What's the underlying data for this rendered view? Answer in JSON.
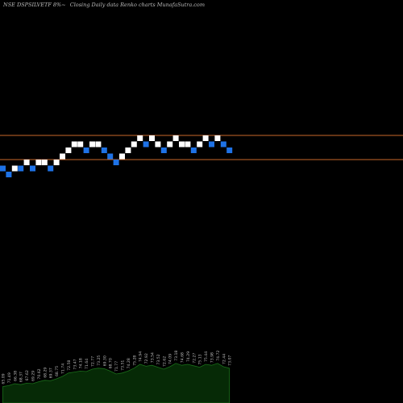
{
  "header": {
    "symbol": "NSE DSPSILVETF 8%~",
    "description": "Closing Daily data  Renko  charts MunafaSutra.com"
  },
  "chart_data": {
    "type": "renko",
    "colors": {
      "up": "#ffffff",
      "down": "#1e72e6",
      "hline": "#c8682a",
      "volume_fill": "#062a06",
      "volume_line": "#1a6e1a",
      "label": "#bbbbbb"
    },
    "horizontal_lines": [
      75.0,
      72.6
    ],
    "bricks": [
      {
        "dir": "down",
        "level": 72.0
      },
      {
        "dir": "down",
        "level": 71.4
      },
      {
        "dir": "up",
        "level": 72.0
      },
      {
        "dir": "down",
        "level": 72.0
      },
      {
        "dir": "up",
        "level": 72.6
      },
      {
        "dir": "down",
        "level": 72.0
      },
      {
        "dir": "up",
        "level": 72.6
      },
      {
        "dir": "up",
        "level": 72.6
      },
      {
        "dir": "down",
        "level": 72.0
      },
      {
        "dir": "up",
        "level": 72.6
      },
      {
        "dir": "up",
        "level": 73.2
      },
      {
        "dir": "up",
        "level": 73.8
      },
      {
        "dir": "up",
        "level": 74.4
      },
      {
        "dir": "up",
        "level": 74.4
      },
      {
        "dir": "down",
        "level": 73.8
      },
      {
        "dir": "up",
        "level": 74.4
      },
      {
        "dir": "up",
        "level": 74.4
      },
      {
        "dir": "down",
        "level": 73.8
      },
      {
        "dir": "down",
        "level": 73.2
      },
      {
        "dir": "down",
        "level": 72.6
      },
      {
        "dir": "up",
        "level": 73.2
      },
      {
        "dir": "up",
        "level": 73.8
      },
      {
        "dir": "up",
        "level": 74.4
      },
      {
        "dir": "up",
        "level": 75.0
      },
      {
        "dir": "down",
        "level": 74.4
      },
      {
        "dir": "up",
        "level": 75.0
      },
      {
        "dir": "up",
        "level": 74.4
      },
      {
        "dir": "down",
        "level": 73.8
      },
      {
        "dir": "up",
        "level": 74.4
      },
      {
        "dir": "up",
        "level": 75.0
      },
      {
        "dir": "up",
        "level": 74.4
      },
      {
        "dir": "up",
        "level": 74.4
      },
      {
        "dir": "down",
        "level": 73.8
      },
      {
        "dir": "up",
        "level": 74.4
      },
      {
        "dir": "up",
        "level": 75.0
      },
      {
        "dir": "down",
        "level": 74.4
      },
      {
        "dir": "up",
        "level": 75.0
      },
      {
        "dir": "down",
        "level": 74.4
      },
      {
        "dir": "down",
        "level": 73.8
      }
    ],
    "volume": [
      0.34,
      0.36,
      0.4,
      0.38,
      0.41,
      0.4,
      0.44,
      0.47,
      0.46,
      0.5,
      0.55,
      0.62,
      0.64,
      0.66,
      0.65,
      0.7,
      0.72,
      0.71,
      0.66,
      0.6,
      0.62,
      0.66,
      0.72,
      0.8,
      0.76,
      0.78,
      0.74,
      0.7,
      0.75,
      0.82,
      0.78,
      0.8,
      0.77,
      0.74,
      0.8,
      0.78,
      0.82,
      0.75,
      0.72
    ],
    "labels": [
      "65.09",
      "71.49",
      "66.38",
      "68.37",
      "67.62",
      "69.29",
      "70.62",
      "68.29",
      "69.37",
      "68.75",
      "71.74",
      "72.58",
      "73.47",
      "74.18",
      "71.64",
      "72.77",
      "73.25",
      "69.30",
      "68.70",
      "71.77",
      "73.51",
      "74.28",
      "75.28",
      "74.94",
      "72.92",
      "73.54",
      "73.52",
      "72.62",
      "74.09",
      "73.18",
      "74.68",
      "74.29",
      "72.27",
      "75.13",
      "75.44",
      "73.98",
      "74.72",
      "72.44",
      "73.07"
    ]
  }
}
